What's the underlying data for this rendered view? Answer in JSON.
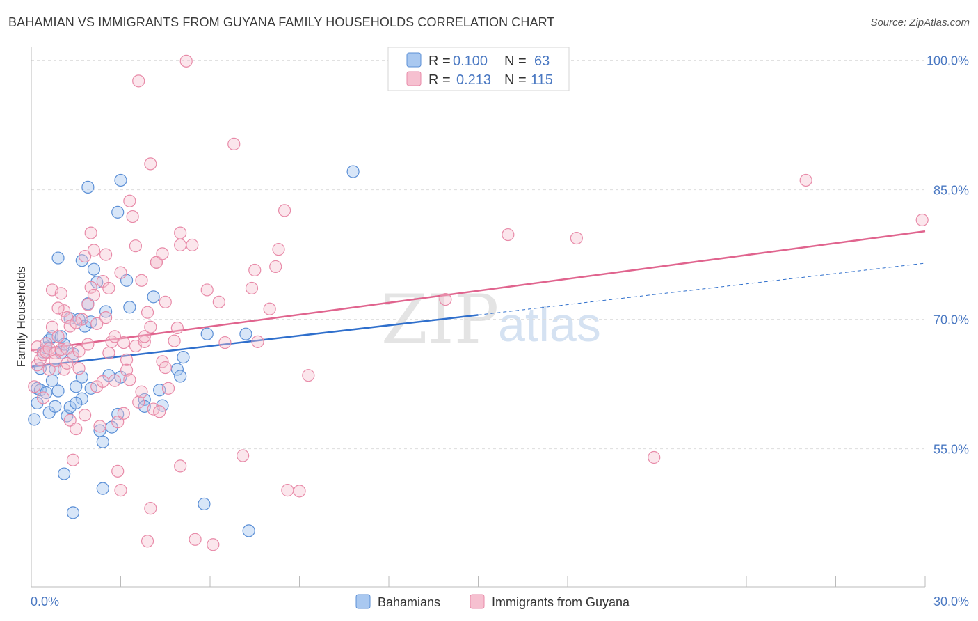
{
  "header": {
    "title": "BAHAMIAN VS IMMIGRANTS FROM GUYANA FAMILY HOUSEHOLDS CORRELATION CHART",
    "source": "Source: ZipAtlas.com"
  },
  "watermark": {
    "zip": "ZIP",
    "atlas": "atlas"
  },
  "colors": {
    "blue_fill": "#a9c8f0",
    "blue_stroke": "#5b8fd6",
    "blue_line": "#2f6fcc",
    "pink_fill": "#f6c0d0",
    "pink_stroke": "#e88aa8",
    "pink_line": "#e0648e",
    "tick_text": "#4a78c2",
    "grid": "#dddddd"
  },
  "legend_top": {
    "rows": [
      {
        "r_label": "R =",
        "r_value": "0.100",
        "n_label": "N =",
        "n_value": "63"
      },
      {
        "r_label": "R =",
        "r_value": "0.213",
        "n_label": "N =",
        "n_value": "115"
      }
    ]
  },
  "chart_data": {
    "type": "scatter",
    "title": "BAHAMIAN VS IMMIGRANTS FROM GUYANA FAMILY HOUSEHOLDS CORRELATION CHART",
    "xlabel": "",
    "ylabel": "Family Households",
    "xlim": [
      0,
      30
    ],
    "ylim": [
      39,
      101.5
    ],
    "x_tick_labels": [
      "0.0%",
      "30.0%"
    ],
    "y_ticks": [
      55,
      70,
      85,
      100
    ],
    "y_tick_labels": [
      "55.0%",
      "70.0%",
      "85.0%",
      "100.0%"
    ],
    "grid": "horizontal dashed",
    "legend_position": "bottom-center",
    "series": [
      {
        "name": "Bahamians",
        "r": 0.1,
        "n": 63,
        "trend": {
          "x0": 0,
          "y0": 64.5,
          "x1": 15,
          "y1": 70.5,
          "extended_to_x": 30,
          "extended_y": 76.5
        },
        "points": [
          [
            0.1,
            58.4
          ],
          [
            0.2,
            60.3
          ],
          [
            0.2,
            62.0
          ],
          [
            0.3,
            64.3
          ],
          [
            0.3,
            61.8
          ],
          [
            0.4,
            66.2
          ],
          [
            0.5,
            61.5
          ],
          [
            0.6,
            59.2
          ],
          [
            0.6,
            67.6
          ],
          [
            0.7,
            62.9
          ],
          [
            0.7,
            68.0
          ],
          [
            0.8,
            59.9
          ],
          [
            0.8,
            64.2
          ],
          [
            0.9,
            77.1
          ],
          [
            0.9,
            61.7
          ],
          [
            1.0,
            68.0
          ],
          [
            1.0,
            66.1
          ],
          [
            1.1,
            67.1
          ],
          [
            1.1,
            52.1
          ],
          [
            1.2,
            58.8
          ],
          [
            1.3,
            59.8
          ],
          [
            1.3,
            70.1
          ],
          [
            1.4,
            47.6
          ],
          [
            1.4,
            66.0
          ],
          [
            1.5,
            62.2
          ],
          [
            1.6,
            70.0
          ],
          [
            1.7,
            63.3
          ],
          [
            1.7,
            76.8
          ],
          [
            1.7,
            60.8
          ],
          [
            1.8,
            69.2
          ],
          [
            1.9,
            85.3
          ],
          [
            1.9,
            71.8
          ],
          [
            2.0,
            62.0
          ],
          [
            2.0,
            69.7
          ],
          [
            2.1,
            75.8
          ],
          [
            2.2,
            74.3
          ],
          [
            2.3,
            57.1
          ],
          [
            2.4,
            55.8
          ],
          [
            2.4,
            50.4
          ],
          [
            2.5,
            70.9
          ],
          [
            2.6,
            63.5
          ],
          [
            2.9,
            82.4
          ],
          [
            2.9,
            59.0
          ],
          [
            3.0,
            86.1
          ],
          [
            3.0,
            63.3
          ],
          [
            3.3,
            71.4
          ],
          [
            3.8,
            60.7
          ],
          [
            3.8,
            59.9
          ],
          [
            4.1,
            72.6
          ],
          [
            4.3,
            61.8
          ],
          [
            4.4,
            60.0
          ],
          [
            4.9,
            64.2
          ],
          [
            5.0,
            63.4
          ],
          [
            5.1,
            65.6
          ],
          [
            5.8,
            48.6
          ],
          [
            5.9,
            68.3
          ],
          [
            7.2,
            68.3
          ],
          [
            7.3,
            45.5
          ],
          [
            10.8,
            87.1
          ],
          [
            3.2,
            74.5
          ],
          [
            2.7,
            57.5
          ],
          [
            1.5,
            60.3
          ],
          [
            0.5,
            66.7
          ]
        ]
      },
      {
        "name": "Immigrants from Guyana",
        "r": 0.213,
        "n": 115,
        "trend": {
          "x0": 0,
          "y0": 66.4,
          "x1": 30,
          "y1": 80.2
        },
        "points": [
          [
            0.1,
            62.2
          ],
          [
            0.2,
            64.7
          ],
          [
            0.2,
            66.8
          ],
          [
            0.3,
            65.3
          ],
          [
            0.4,
            65.9
          ],
          [
            0.5,
            67.2
          ],
          [
            0.5,
            66.2
          ],
          [
            0.6,
            66.6
          ],
          [
            0.6,
            64.2
          ],
          [
            0.7,
            73.4
          ],
          [
            0.7,
            69.1
          ],
          [
            0.8,
            66.1
          ],
          [
            0.8,
            65.2
          ],
          [
            0.9,
            68.0
          ],
          [
            1.0,
            66.5
          ],
          [
            1.0,
            73.0
          ],
          [
            1.1,
            64.2
          ],
          [
            1.1,
            71.0
          ],
          [
            1.2,
            66.6
          ],
          [
            1.2,
            70.2
          ],
          [
            1.3,
            69.2
          ],
          [
            1.3,
            58.3
          ],
          [
            1.4,
            65.6
          ],
          [
            1.4,
            53.7
          ],
          [
            1.5,
            57.3
          ],
          [
            1.6,
            64.3
          ],
          [
            1.6,
            66.3
          ],
          [
            1.7,
            70.0
          ],
          [
            1.8,
            58.9
          ],
          [
            1.8,
            77.3
          ],
          [
            1.9,
            71.7
          ],
          [
            1.9,
            67.1
          ],
          [
            2.0,
            80.0
          ],
          [
            2.0,
            73.7
          ],
          [
            2.1,
            72.8
          ],
          [
            2.1,
            78.0
          ],
          [
            2.2,
            62.2
          ],
          [
            2.3,
            57.6
          ],
          [
            2.4,
            74.4
          ],
          [
            2.4,
            62.8
          ],
          [
            2.5,
            77.5
          ],
          [
            2.5,
            70.2
          ],
          [
            2.6,
            73.6
          ],
          [
            2.7,
            67.4
          ],
          [
            2.8,
            68.0
          ],
          [
            2.9,
            52.4
          ],
          [
            2.9,
            58.1
          ],
          [
            3.0,
            50.2
          ],
          [
            3.0,
            75.4
          ],
          [
            3.1,
            67.3
          ],
          [
            3.2,
            65.3
          ],
          [
            3.2,
            64.1
          ],
          [
            3.3,
            63.0
          ],
          [
            3.3,
            83.7
          ],
          [
            3.4,
            81.9
          ],
          [
            3.5,
            66.9
          ],
          [
            3.5,
            78.5
          ],
          [
            3.6,
            60.4
          ],
          [
            3.6,
            97.6
          ],
          [
            3.7,
            74.5
          ],
          [
            3.8,
            67.4
          ],
          [
            3.8,
            68.0
          ],
          [
            3.9,
            44.3
          ],
          [
            4.0,
            48.1
          ],
          [
            4.0,
            88.0
          ],
          [
            4.1,
            59.6
          ],
          [
            4.2,
            76.6
          ],
          [
            4.2,
            76.6
          ],
          [
            4.3,
            59.3
          ],
          [
            4.4,
            77.6
          ],
          [
            4.4,
            65.1
          ],
          [
            4.5,
            64.4
          ],
          [
            4.5,
            72.0
          ],
          [
            4.6,
            62.0
          ],
          [
            4.8,
            67.5
          ],
          [
            5.0,
            78.6
          ],
          [
            5.0,
            80.0
          ],
          [
            5.0,
            53.0
          ],
          [
            5.2,
            99.9
          ],
          [
            5.4,
            78.6
          ],
          [
            5.5,
            44.5
          ],
          [
            5.9,
            73.4
          ],
          [
            6.1,
            43.9
          ],
          [
            6.3,
            72.0
          ],
          [
            6.5,
            67.3
          ],
          [
            6.8,
            90.3
          ],
          [
            7.1,
            54.2
          ],
          [
            7.4,
            73.6
          ],
          [
            7.5,
            75.7
          ],
          [
            7.6,
            67.4
          ],
          [
            8.0,
            71.2
          ],
          [
            8.2,
            76.1
          ],
          [
            8.3,
            78.1
          ],
          [
            8.5,
            82.6
          ],
          [
            8.6,
            50.2
          ],
          [
            9.0,
            50.1
          ],
          [
            9.3,
            63.5
          ],
          [
            13.9,
            72.3
          ],
          [
            16.0,
            79.8
          ],
          [
            18.3,
            79.4
          ],
          [
            20.9,
            54.0
          ],
          [
            26.0,
            86.1
          ],
          [
            29.9,
            81.5
          ],
          [
            2.8,
            62.9
          ],
          [
            3.9,
            70.8
          ],
          [
            1.5,
            69.6
          ],
          [
            2.6,
            66.1
          ],
          [
            4.0,
            69.1
          ],
          [
            3.1,
            59.1
          ],
          [
            0.9,
            71.3
          ],
          [
            1.2,
            64.9
          ],
          [
            2.2,
            69.5
          ],
          [
            0.4,
            60.9
          ],
          [
            4.9,
            69.0
          ],
          [
            3.7,
            61.6
          ]
        ]
      }
    ]
  }
}
